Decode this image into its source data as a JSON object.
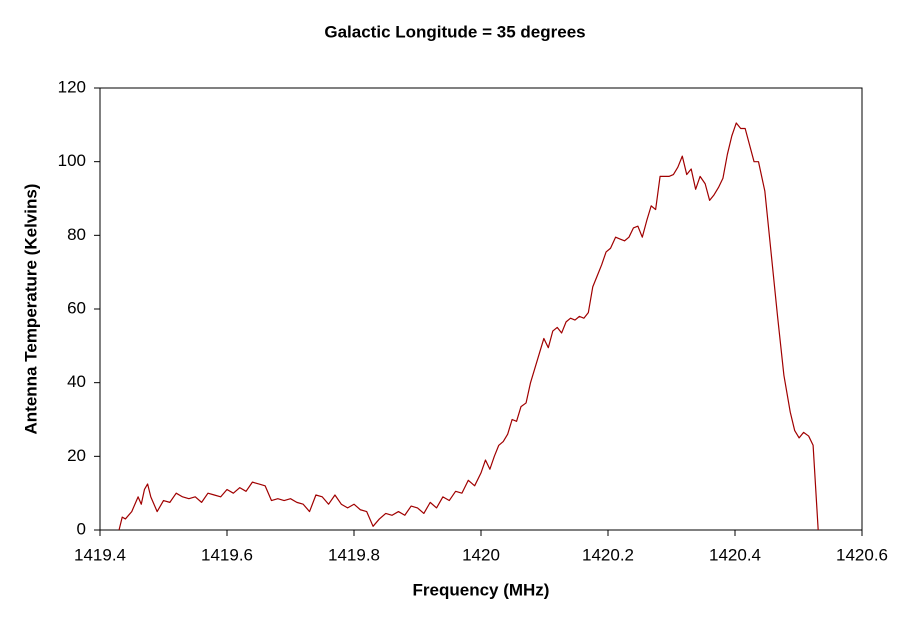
{
  "chart_data": {
    "type": "line",
    "title": "Galactic Longitude = 35 degrees",
    "x_label": "Frequency (MHz)",
    "y_label": "Antenna Temperature (Kelvins)",
    "xlim": [
      1419.4,
      1420.6
    ],
    "xticks": [
      1419.4,
      1419.6,
      1419.8,
      1420,
      1420.2,
      1420.4,
      1420.6
    ],
    "ylim": [
      0,
      120
    ],
    "yticks": [
      0,
      20,
      40,
      60,
      80,
      100,
      120
    ],
    "grid": false,
    "series": [
      {
        "color": "#a00000",
        "x": [
          1419.43,
          1419.435,
          1419.44,
          1419.45,
          1419.46,
          1419.465,
          1419.47,
          1419.475,
          1419.48,
          1419.49,
          1419.5,
          1419.51,
          1419.52,
          1419.53,
          1419.54,
          1419.55,
          1419.56,
          1419.57,
          1419.58,
          1419.59,
          1419.6,
          1419.61,
          1419.62,
          1419.63,
          1419.64,
          1419.65,
          1419.66,
          1419.67,
          1419.68,
          1419.69,
          1419.7,
          1419.71,
          1419.72,
          1419.73,
          1419.74,
          1419.75,
          1419.76,
          1419.77,
          1419.78,
          1419.79,
          1419.8,
          1419.81,
          1419.82,
          1419.83,
          1419.84,
          1419.85,
          1419.86,
          1419.87,
          1419.88,
          1419.89,
          1419.9,
          1419.91,
          1419.92,
          1419.93,
          1419.94,
          1419.95,
          1419.96,
          1419.97,
          1419.98,
          1419.99,
          1420.0,
          1420.007,
          1420.014,
          1420.021,
          1420.028,
          1420.035,
          1420.042,
          1420.049,
          1420.056,
          1420.063,
          1420.071,
          1420.078,
          1420.085,
          1420.092,
          1420.099,
          1420.106,
          1420.113,
          1420.12,
          1420.127,
          1420.134,
          1420.141,
          1420.148,
          1420.155,
          1420.162,
          1420.169,
          1420.176,
          1420.183,
          1420.19,
          1420.197,
          1420.204,
          1420.212,
          1420.219,
          1420.226,
          1420.233,
          1420.24,
          1420.247,
          1420.254,
          1420.261,
          1420.268,
          1420.275,
          1420.282,
          1420.289,
          1420.296,
          1420.303,
          1420.31,
          1420.317,
          1420.324,
          1420.331,
          1420.338,
          1420.345,
          1420.353,
          1420.36,
          1420.367,
          1420.374,
          1420.381,
          1420.388,
          1420.395,
          1420.402,
          1420.409,
          1420.416,
          1420.43,
          1420.437,
          1420.447,
          1420.457,
          1420.467,
          1420.477,
          1420.487,
          1420.494,
          1420.501,
          1420.508,
          1420.516,
          1420.523,
          1420.531
        ],
        "values": [
          0,
          3.5,
          3,
          5,
          9,
          7,
          11,
          12.5,
          9,
          5,
          8,
          7.5,
          10,
          9,
          8.5,
          9,
          7.5,
          10,
          9.5,
          9,
          11,
          10,
          11.5,
          10.5,
          13,
          12.5,
          12,
          8,
          8.5,
          8,
          8.5,
          7.5,
          7,
          5,
          9.5,
          9,
          7,
          9.5,
          7,
          6,
          7,
          5.5,
          5,
          1,
          3,
          4.5,
          4,
          5,
          4,
          6.5,
          6,
          4.5,
          7.5,
          6,
          9,
          8,
          10.5,
          10,
          13.5,
          12,
          15.5,
          19,
          16.5,
          20,
          23,
          24,
          26,
          30,
          29.5,
          33.5,
          34.5,
          40,
          44,
          48,
          52,
          49.5,
          54,
          55,
          53.5,
          56.5,
          57.5,
          57,
          58,
          57.5,
          59,
          66,
          69,
          72,
          75.5,
          76.5,
          79.5,
          79,
          78.5,
          79.5,
          82,
          82.5,
          79.5,
          84,
          88,
          87,
          96,
          96,
          96,
          96.5,
          98.5,
          101.5,
          96.5,
          98,
          92.5,
          96,
          94,
          89.5,
          91,
          93,
          95.5,
          102,
          107,
          110.5,
          109,
          109,
          100,
          100,
          92,
          75,
          58,
          42,
          32,
          27,
          25,
          26.5,
          25.5,
          23,
          0
        ]
      }
    ]
  }
}
